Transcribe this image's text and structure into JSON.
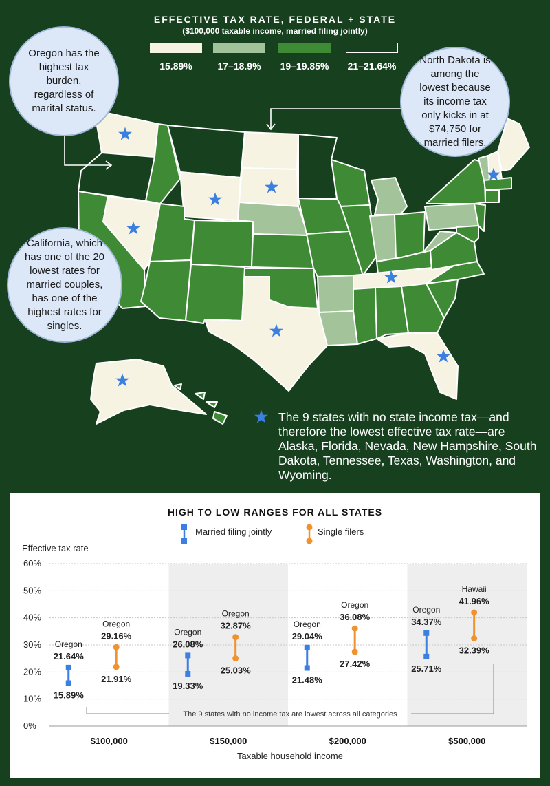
{
  "legend": {
    "title": "EFFECTIVE TAX RATE, FEDERAL + STATE",
    "subtitle": "($100,000 taxable income, married filing jointly)",
    "items": [
      {
        "label": "15.89%",
        "color": "#f7f3e3"
      },
      {
        "label": "17–18.9%",
        "color": "#a3c49a"
      },
      {
        "label": "19–19.85%",
        "color": "#3f8a35"
      },
      {
        "label": "21–21.64%",
        "color": "#17401f"
      }
    ]
  },
  "callouts": {
    "oregon": "Oregon has the highest tax burden, regardless of marital status.",
    "california": "California, which has one of the 20 lowest rates for married couples, has one of the highest rates for singles.",
    "north_dakota": "North Dakota is among the lowest because its income tax only kicks in at $74,750 for married filers."
  },
  "no_tax_note": "The 9 states with no state income tax—and therefore the lowest effective tax rate—are Alaska, Florida, Nevada, New Hampshire, South Dakota, Tennessee, Texas, Washington, and Wyoming.",
  "map": {
    "no_tax_states": [
      "Alaska",
      "Florida",
      "Nevada",
      "New Hampshire",
      "South Dakota",
      "Tennessee",
      "Texas",
      "Washington",
      "Wyoming"
    ],
    "icon": "star-icon"
  },
  "chart_data": {
    "type": "range",
    "title": "HIGH TO LOW RANGES FOR ALL STATES",
    "ylabel": "Effective tax rate",
    "xlabel": "Taxable household income",
    "ylim": [
      0,
      60
    ],
    "yticks": [
      "0%",
      "10%",
      "20%",
      "30%",
      "40%",
      "50%",
      "60%"
    ],
    "categories": [
      "$100,000",
      "$150,000",
      "$200,000",
      "$500,000"
    ],
    "series": [
      {
        "name": "Married filing jointly",
        "color": "#3b7fe0",
        "high": [
          21.64,
          26.08,
          29.04,
          34.37
        ],
        "low": [
          15.89,
          19.33,
          21.48,
          25.71
        ],
        "high_labels": [
          "21.64%",
          "26.08%",
          "29.04%",
          "34.37%"
        ],
        "low_labels": [
          "15.89%",
          "19.33%",
          "21.48%",
          "25.71%"
        ],
        "high_states": [
          "Oregon",
          "Oregon",
          "Oregon",
          "Oregon"
        ]
      },
      {
        "name": "Single filers",
        "color": "#f0922e",
        "high": [
          29.16,
          32.87,
          36.08,
          41.96
        ],
        "low": [
          21.91,
          25.03,
          27.42,
          32.39
        ],
        "high_labels": [
          "29.16%",
          "32.87%",
          "36.08%",
          "41.96%"
        ],
        "low_labels": [
          "21.91%",
          "25.03%",
          "27.42%",
          "32.39%"
        ],
        "high_states": [
          "Oregon",
          "Oregon",
          "Oregon",
          "Hawaii"
        ]
      }
    ],
    "annotation": "The 9 states with no income tax are lowest across all categories"
  }
}
